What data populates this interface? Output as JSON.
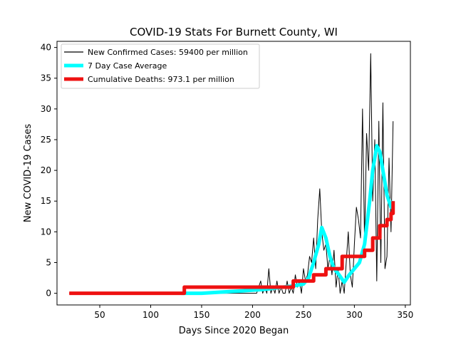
{
  "chart_data": {
    "type": "line",
    "title": "COVID-19 Stats For Burnett County, WI",
    "xlabel": "Days Since 2020 Began",
    "ylabel": "New COVID-19 Cases",
    "xlim": [
      8,
      355
    ],
    "ylim": [
      -1.9,
      41
    ],
    "xticks": [
      50,
      100,
      150,
      200,
      250,
      300,
      350
    ],
    "yticks": [
      0,
      5,
      10,
      15,
      20,
      25,
      30,
      35,
      40
    ],
    "grid": false,
    "legend_position": "top-left",
    "series": [
      {
        "name": "New Confirmed Cases: 59400 per million",
        "color": "#000000",
        "x": [
          20,
          130,
          199,
          201,
          204,
          206,
          208,
          210,
          212,
          214,
          216,
          218,
          220,
          222,
          224,
          226,
          228,
          230,
          232,
          234,
          236,
          238,
          240,
          242,
          244,
          246,
          248,
          250,
          252,
          254,
          256,
          258,
          260,
          262,
          264,
          266,
          268,
          270,
          272,
          274,
          276,
          278,
          280,
          282,
          284,
          286,
          288,
          290,
          292,
          294,
          296,
          298,
          300,
          302,
          304,
          306,
          308,
          310,
          312,
          314,
          316,
          318,
          320,
          322,
          324,
          326,
          328,
          330,
          332,
          334,
          336,
          338
        ],
        "y": [
          0,
          0,
          0,
          0,
          0,
          1,
          2,
          0,
          1,
          0,
          4,
          0,
          1,
          0,
          2,
          0,
          1,
          0,
          0,
          2,
          0,
          1,
          0,
          3,
          1,
          2,
          0,
          4,
          2,
          3,
          6,
          5,
          9,
          4,
          12,
          17,
          10,
          7,
          8,
          4,
          6,
          3,
          7,
          1,
          4,
          0,
          2,
          0,
          5,
          10,
          3,
          1,
          8,
          14,
          12,
          9,
          30,
          8,
          26,
          20,
          39,
          15,
          25,
          2,
          28,
          5,
          31,
          4,
          6,
          22,
          10,
          28
        ]
      },
      {
        "name": "7 Day Case Average",
        "color": "#00ffff",
        "x": [
          130,
          140,
          150,
          160,
          170,
          180,
          190,
          200,
          210,
          220,
          230,
          240,
          250,
          255,
          260,
          265,
          268,
          272,
          276,
          280,
          285,
          290,
          295,
          300,
          305,
          310,
          315,
          318,
          322,
          325,
          328,
          332,
          336,
          338
        ],
        "y": [
          0,
          0,
          0,
          0.1,
          0.2,
          0.3,
          0.4,
          0.5,
          0.6,
          0.8,
          1.0,
          1.2,
          1.5,
          2.5,
          5,
          8,
          10.7,
          9,
          6,
          4,
          3,
          1.8,
          3,
          4,
          5,
          8,
          15,
          20,
          24,
          23,
          20,
          16,
          14,
          15
        ]
      },
      {
        "name": "Cumulative Deaths: 973.1 per million",
        "color": "#ee1111",
        "x": [
          20,
          133,
          133,
          240,
          240,
          260,
          260,
          272,
          272,
          288,
          288,
          310,
          310,
          318,
          318,
          325,
          325,
          332,
          332,
          336,
          336,
          338,
          338
        ],
        "y": [
          0,
          0,
          1,
          1,
          2,
          2,
          3,
          3,
          4,
          4,
          6,
          6,
          7,
          7,
          9,
          9,
          11,
          11,
          12,
          12,
          13,
          13,
          15
        ]
      }
    ]
  }
}
